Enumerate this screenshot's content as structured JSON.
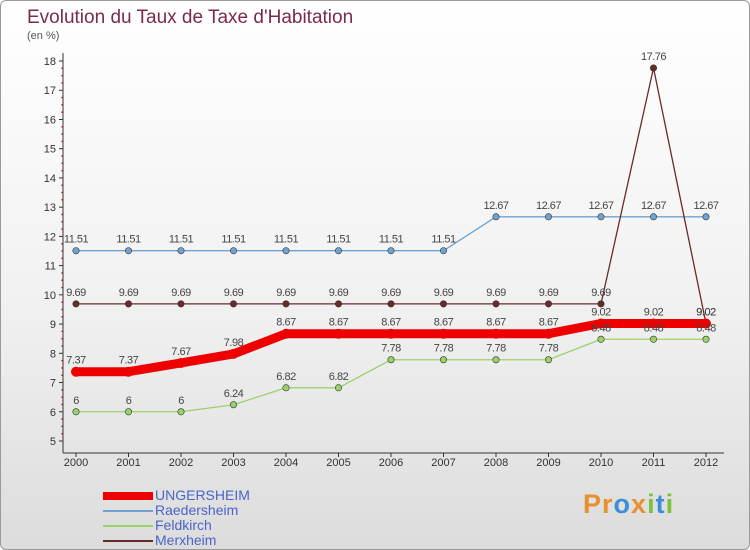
{
  "title": "Evolution du Taux de Taxe d'Habitation",
  "unit_label": "(en %)",
  "logo": {
    "text": "Proxiti",
    "letters": [
      "P",
      "r",
      "o",
      "x",
      "i",
      "t",
      "i"
    ],
    "colors": [
      "#e8902e",
      "#e8902e",
      "#3a8fd8",
      "#e8902e",
      "#7cc13a",
      "#3a8fd8",
      "#7cc13a"
    ]
  },
  "chart_data": {
    "type": "line",
    "x": [
      "2000",
      "2001",
      "2002",
      "2003",
      "2004",
      "2005",
      "2006",
      "2007",
      "2008",
      "2009",
      "2010",
      "2011",
      "2012"
    ],
    "ylim": [
      5,
      18
    ],
    "yticks": [
      "5",
      "6",
      "7",
      "8",
      "9",
      "10",
      "11",
      "12",
      "13",
      "14",
      "15",
      "16",
      "17",
      "18"
    ],
    "grid": false,
    "legend_position": "bottom-left",
    "series": [
      {
        "name": "UNGERSHEIM",
        "color": "#ee0000",
        "values": [
          7.37,
          7.37,
          7.67,
          7.98,
          8.67,
          8.67,
          8.67,
          8.67,
          8.67,
          8.67,
          9.02,
          9.02,
          9.02
        ],
        "labels": [
          "7.37",
          "7.37",
          "7.67",
          "7.98",
          "8.67",
          "8.67",
          "8.67",
          "8.67",
          "8.67",
          "8.67",
          "9.02",
          "9.02",
          "9.02"
        ]
      },
      {
        "name": "Raedersheim",
        "color": "#6fa3cf",
        "values": [
          11.51,
          11.51,
          11.51,
          11.51,
          11.51,
          11.51,
          11.51,
          11.51,
          12.67,
          12.67,
          12.67,
          12.67,
          12.67
        ],
        "labels": [
          "11.51",
          "11.51",
          "11.51",
          "11.51",
          "11.51",
          "11.51",
          "11.51",
          "11.51",
          "12.67",
          "12.67",
          "12.67",
          "12.67",
          "12.67"
        ]
      },
      {
        "name": "Feldkirch",
        "color": "#9ad26a",
        "values": [
          6,
          6,
          6,
          6.24,
          6.82,
          6.82,
          7.78,
          7.78,
          7.78,
          7.78,
          8.48,
          8.48,
          8.48
        ],
        "labels": [
          "6",
          "6",
          "6",
          "6.24",
          "6.82",
          "6.82",
          "7.78",
          "7.78",
          "7.78",
          "7.78",
          "8.48",
          "8.48",
          "8.48"
        ]
      },
      {
        "name": "Merxheim",
        "color": "#6b2a2a",
        "values": [
          9.69,
          9.69,
          9.69,
          9.69,
          9.69,
          9.69,
          9.69,
          9.69,
          9.69,
          9.69,
          9.69,
          17.76,
          9.02
        ],
        "labels": [
          "9.69",
          "9.69",
          "9.69",
          "9.69",
          "9.69",
          "9.69",
          "9.69",
          "9.69",
          "9.69",
          "9.69",
          "9.69",
          "17.76",
          "9.02"
        ]
      }
    ]
  }
}
